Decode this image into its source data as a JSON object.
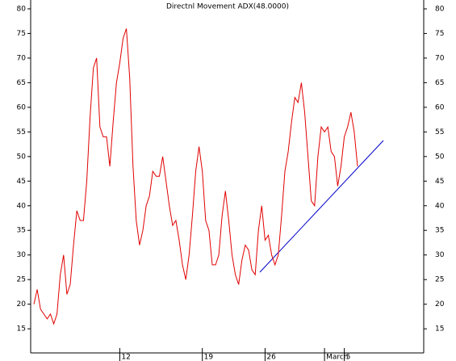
{
  "chart_data": {
    "type": "line",
    "title": "Directnl Movement ADX(48.0000)",
    "categories": [
      null,
      null,
      null,
      null,
      null,
      null,
      null,
      null,
      null,
      null,
      null,
      null,
      null,
      null,
      null,
      null,
      null,
      null,
      null,
      null,
      null,
      null,
      null,
      null,
      null,
      null,
      "12",
      null,
      null,
      null,
      null,
      null,
      null,
      null,
      null,
      null,
      null,
      null,
      null,
      null,
      null,
      null,
      null,
      null,
      null,
      null,
      null,
      null,
      null,
      null,
      null,
      "19",
      null,
      null,
      null,
      null,
      null,
      null,
      null,
      null,
      null,
      null,
      null,
      null,
      null,
      null,
      null,
      null,
      null,
      null,
      "26",
      null,
      null,
      null,
      null,
      null,
      null,
      null,
      null,
      null,
      null,
      null,
      null,
      null,
      null,
      null,
      null,
      null,
      "March",
      null,
      null,
      null,
      null,
      null,
      "5",
      null,
      null,
      null,
      null
    ],
    "series": [
      {
        "name": "ADX",
        "color": "#e00000",
        "values": [
          20,
          23,
          19,
          18,
          17,
          18,
          16,
          18,
          26,
          30,
          22,
          24,
          32,
          39,
          37,
          37,
          45,
          58,
          68,
          70,
          56,
          54,
          54,
          48,
          57,
          65,
          69,
          74,
          76,
          66,
          48,
          37,
          32,
          35,
          40,
          42,
          47,
          46,
          46,
          50,
          45,
          40,
          36,
          37,
          33,
          28,
          25,
          30,
          38,
          47,
          52,
          47,
          37,
          35,
          28,
          28,
          30,
          38,
          43,
          37,
          30,
          26,
          24,
          29,
          32,
          31,
          27,
          26,
          35,
          40,
          33,
          34,
          30,
          28,
          30,
          38,
          47,
          51,
          57,
          62,
          61,
          65,
          59,
          50,
          41,
          40,
          50,
          56,
          55,
          56,
          51,
          50,
          44,
          48,
          54,
          56,
          59,
          55,
          48
        ]
      }
    ],
    "ylim": [
      10.1,
      81.8
    ],
    "yticks": [
      15,
      20,
      25,
      30,
      35,
      40,
      45,
      50,
      55,
      60,
      65,
      70,
      75,
      80
    ]
  }
}
